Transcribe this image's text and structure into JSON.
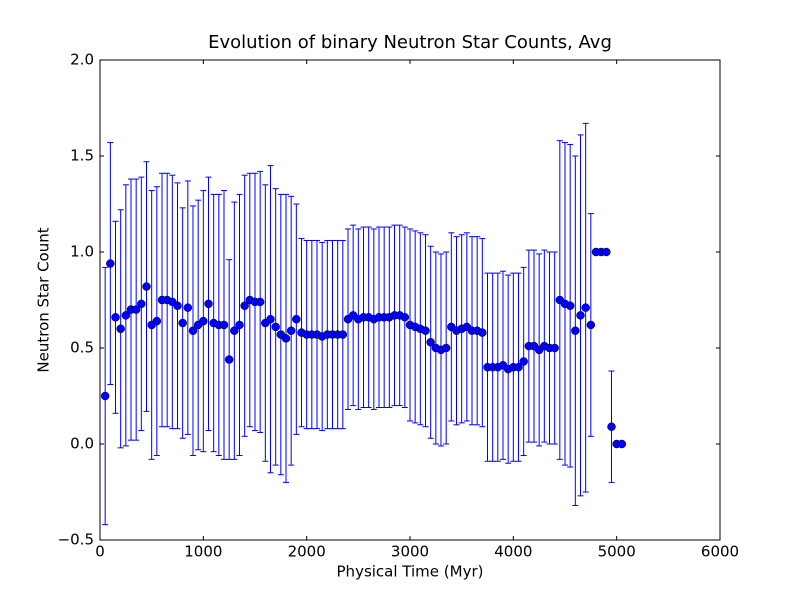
{
  "chart_data": {
    "type": "errorbar",
    "title": "Evolution of binary Neutron Star Counts, Avg",
    "xlabel": "Physical Time (Myr)",
    "ylabel": "Neutron Star Count",
    "color": "#0000ff",
    "x": [
      50,
      100,
      150,
      200,
      250,
      300,
      350,
      400,
      450,
      500,
      550,
      600,
      650,
      700,
      750,
      800,
      850,
      900,
      950,
      1000,
      1050,
      1100,
      1150,
      1200,
      1250,
      1300,
      1350,
      1400,
      1450,
      1500,
      1550,
      1600,
      1650,
      1700,
      1750,
      1800,
      1850,
      1900,
      1950,
      2000,
      2050,
      2100,
      2150,
      2200,
      2250,
      2300,
      2350,
      2400,
      2450,
      2500,
      2550,
      2600,
      2650,
      2700,
      2750,
      2800,
      2850,
      2900,
      2950,
      3000,
      3050,
      3100,
      3150,
      3200,
      3250,
      3300,
      3350,
      3400,
      3450,
      3500,
      3550,
      3600,
      3650,
      3700,
      3750,
      3800,
      3850,
      3900,
      3950,
      4000,
      4050,
      4100,
      4150,
      4200,
      4250,
      4300,
      4350,
      4400,
      4450,
      4500,
      4550,
      4600,
      4650,
      4700,
      4750,
      4800,
      4850,
      4900,
      4950,
      5000,
      5050
    ],
    "values": [
      0.25,
      0.94,
      0.66,
      0.6,
      0.67,
      0.7,
      0.7,
      0.73,
      0.82,
      0.62,
      0.64,
      0.75,
      0.75,
      0.74,
      0.72,
      0.63,
      0.71,
      0.59,
      0.62,
      0.64,
      0.73,
      0.63,
      0.62,
      0.62,
      0.44,
      0.59,
      0.62,
      0.72,
      0.75,
      0.74,
      0.74,
      0.63,
      0.65,
      0.61,
      0.57,
      0.55,
      0.59,
      0.65,
      0.58,
      0.57,
      0.57,
      0.57,
      0.56,
      0.57,
      0.57,
      0.57,
      0.57,
      0.65,
      0.67,
      0.65,
      0.66,
      0.66,
      0.65,
      0.66,
      0.66,
      0.66,
      0.67,
      0.67,
      0.66,
      0.62,
      0.61,
      0.6,
      0.59,
      0.53,
      0.5,
      0.49,
      0.5,
      0.61,
      0.59,
      0.6,
      0.61,
      0.59,
      0.59,
      0.58,
      0.4,
      0.4,
      0.4,
      0.41,
      0.39,
      0.4,
      0.4,
      0.43,
      0.51,
      0.51,
      0.49,
      0.51,
      0.5,
      0.5,
      0.75,
      0.73,
      0.72,
      0.59,
      0.67,
      0.71,
      0.62,
      1.0,
      1.0,
      1.0,
      0.09,
      0.0,
      0.0
    ],
    "errors": [
      0.67,
      0.63,
      0.5,
      0.62,
      0.68,
      0.68,
      0.68,
      0.66,
      0.65,
      0.7,
      0.7,
      0.66,
      0.66,
      0.66,
      0.64,
      0.6,
      0.66,
      0.65,
      0.65,
      0.68,
      0.66,
      0.67,
      0.68,
      0.7,
      0.52,
      0.67,
      0.68,
      0.68,
      0.66,
      0.67,
      0.68,
      0.72,
      0.8,
      0.72,
      0.73,
      0.75,
      0.7,
      0.6,
      0.49,
      0.49,
      0.49,
      0.49,
      0.49,
      0.49,
      0.49,
      0.49,
      0.49,
      0.47,
      0.47,
      0.47,
      0.47,
      0.47,
      0.47,
      0.47,
      0.47,
      0.47,
      0.47,
      0.47,
      0.47,
      0.5,
      0.5,
      0.5,
      0.5,
      0.5,
      0.5,
      0.5,
      0.5,
      0.49,
      0.49,
      0.49,
      0.49,
      0.49,
      0.49,
      0.49,
      0.49,
      0.49,
      0.49,
      0.49,
      0.49,
      0.49,
      0.49,
      0.49,
      0.5,
      0.5,
      0.5,
      0.5,
      0.5,
      0.5,
      0.83,
      0.84,
      0.84,
      0.91,
      0.94,
      0.96,
      0.58,
      0,
      0,
      0,
      0.29,
      0,
      0
    ],
    "xlim": [
      0,
      6000
    ],
    "xticks": [
      0,
      1000,
      2000,
      3000,
      4000,
      5000,
      6000
    ],
    "ylim": [
      -0.5,
      2.0
    ],
    "yticks": [
      {
        "value": -0.5,
        "label": "−0.5"
      },
      {
        "value": 0,
        "label": "0.0"
      },
      0.5,
      {
        "value": 1,
        "label": "1.0"
      },
      1.5,
      {
        "value": 2,
        "label": "2.0"
      }
    ]
  }
}
